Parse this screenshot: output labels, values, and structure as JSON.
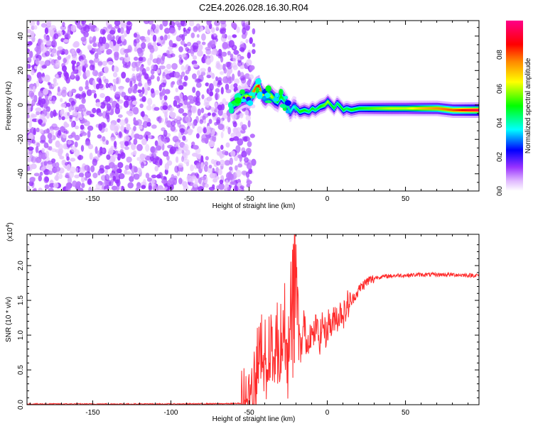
{
  "chart_data": [
    {
      "type": "heatmap",
      "title": "C2E4.2026.028.16.30.R04",
      "xlabel": "Height of straight line (km)",
      "ylabel": "Frequency (Hz)",
      "xlim": [
        -192,
        97
      ],
      "ylim": [
        -50,
        49
      ],
      "xticks": [
        -150,
        -100,
        -50,
        0,
        50
      ],
      "yticks": [
        -40,
        -20,
        0,
        20,
        40
      ],
      "colorbar": {
        "label": "Normalized spectral amplitude",
        "range": [
          0,
          1
        ],
        "ticks": [
          "0.0",
          "0.2",
          "0.4",
          "0.6",
          "0.8"
        ],
        "tick_values": [
          0,
          0.2,
          0.4,
          0.6,
          0.8
        ],
        "colors": [
          "#ffffff",
          "#cc44ff",
          "#0000ff",
          "#00ffff",
          "#00ff00",
          "#ffff00",
          "#ff8800",
          "#ff0000",
          "#ff00aa"
        ]
      },
      "regions": [
        {
          "name": "noise",
          "x_range": [
            -192,
            -55
          ],
          "f_range": [
            -50,
            49
          ],
          "amplitude": [
            0.02,
            0.15
          ]
        },
        {
          "name": "signal",
          "x_range": [
            -62,
            97
          ],
          "amplitude": [
            0.3,
            1.0
          ]
        }
      ],
      "ridge": {
        "x": [
          -62,
          -58,
          -55,
          -52,
          -50,
          -48,
          -46,
          -44,
          -42,
          -40,
          -38,
          -36,
          -34,
          -32,
          -30,
          -28,
          -26,
          -24,
          -22,
          -20,
          -18,
          -15,
          -12,
          -10,
          -8,
          -5,
          -2,
          0,
          2,
          4,
          6,
          8,
          10,
          12,
          15,
          20,
          30,
          40,
          50,
          60,
          70,
          80,
          90,
          97
        ],
        "f": [
          -1,
          2,
          4,
          5,
          4,
          7,
          10,
          11,
          6,
          4,
          6,
          5,
          3,
          2,
          5,
          3,
          0,
          -4,
          -1,
          -2,
          -4,
          -3,
          -4,
          -2,
          -3,
          -1,
          0,
          2,
          0,
          -2,
          1,
          -1,
          -3,
          -2,
          -3,
          -2,
          -2,
          -2,
          -2,
          -2,
          -2,
          -3,
          -3,
          -3
        ],
        "amp": [
          0.4,
          0.5,
          0.55,
          0.6,
          0.7,
          0.75,
          0.8,
          0.85,
          0.7,
          0.6,
          0.65,
          0.6,
          0.55,
          0.5,
          0.5,
          0.45,
          0.45,
          0.4,
          0.35,
          0.45,
          0.5,
          0.5,
          0.45,
          0.5,
          0.45,
          0.5,
          0.55,
          0.6,
          0.5,
          0.5,
          0.45,
          0.5,
          0.5,
          0.45,
          0.5,
          0.5,
          0.55,
          0.6,
          0.6,
          0.7,
          0.75,
          0.8,
          0.9,
          0.95
        ]
      }
    },
    {
      "type": "line",
      "xlabel": "Height of straight line (km)",
      "ylabel": "SNR (10 * v/v)",
      "multiplier": "(x10",
      "multiplier_exp": "4",
      "multiplier_close": ")",
      "xlim": [
        -192,
        97
      ],
      "ylim": [
        0,
        2.45
      ],
      "xticks": [
        -150,
        -100,
        -50,
        0,
        50
      ],
      "yticks": [
        0,
        0.5,
        1.0,
        1.5,
        2.0
      ],
      "ytick_labels": [
        "0.0",
        "0.5",
        "1.0",
        "1.5",
        "2.0"
      ],
      "series": [
        {
          "color": "#ff2a2a",
          "x": [
            -192,
            -100,
            -60,
            -55,
            -50,
            -47,
            -45,
            -43,
            -41,
            -39,
            -37,
            -35,
            -33,
            -31,
            -29,
            -27,
            -25,
            -23,
            -21,
            -19,
            -17,
            -15,
            -13,
            -11,
            -9,
            -7,
            -5,
            -3,
            -1,
            1,
            3,
            5,
            7,
            9,
            11,
            13,
            15,
            17,
            19,
            21,
            23,
            25,
            27,
            29,
            31,
            35,
            40,
            45,
            50,
            60,
            70,
            80,
            90,
            97
          ],
          "y": [
            0.01,
            0.01,
            0.015,
            0.02,
            0.06,
            0.2,
            0.55,
            0.85,
            1.0,
            0.5,
            1.1,
            0.7,
            1.35,
            0.6,
            1.2,
            1.5,
            0.7,
            1.7,
            2.45,
            1.4,
            0.7,
            1.2,
            0.85,
            1.05,
            0.95,
            1.15,
            0.9,
            1.2,
            1.0,
            1.2,
            1.1,
            1.3,
            1.25,
            1.35,
            1.3,
            1.45,
            1.45,
            1.55,
            1.6,
            1.68,
            1.72,
            1.76,
            1.79,
            1.8,
            1.83,
            1.84,
            1.85,
            1.86,
            1.86,
            1.87,
            1.87,
            1.87,
            1.86,
            1.86
          ]
        }
      ]
    }
  ]
}
